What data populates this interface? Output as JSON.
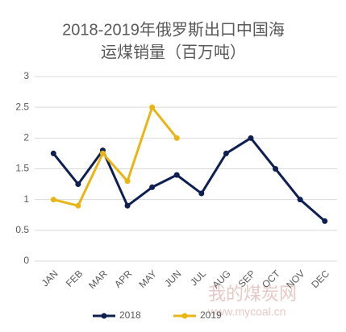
{
  "chart_data": {
    "type": "line",
    "title": [
      "2018-2019年俄罗斯出口中国海",
      "运煤销量（百万吨）"
    ],
    "categories": [
      "JAN",
      "FEB",
      "MAR",
      "APR",
      "MAY",
      "JUN",
      "JUL",
      "AUG",
      "SEP",
      "OCT",
      "NOV",
      "DEC"
    ],
    "series": [
      {
        "name": "2018",
        "color": "#0e1f52",
        "values": [
          1.75,
          1.25,
          1.8,
          0.9,
          1.2,
          1.4,
          1.1,
          1.75,
          2.0,
          1.5,
          1.0,
          0.65
        ]
      },
      {
        "name": "2019",
        "color": "#e9b514",
        "values": [
          1.0,
          0.9,
          1.75,
          1.3,
          2.5,
          2.0,
          null,
          null,
          null,
          null,
          null,
          null
        ]
      }
    ],
    "ylim": [
      0,
      3
    ],
    "yticks": [
      0,
      0.5,
      1,
      1.5,
      2,
      2.5,
      3
    ],
    "grid": true,
    "legend": "bottom",
    "watermark": [
      "我的煤炭网",
      "www.mycoal.cn"
    ]
  }
}
